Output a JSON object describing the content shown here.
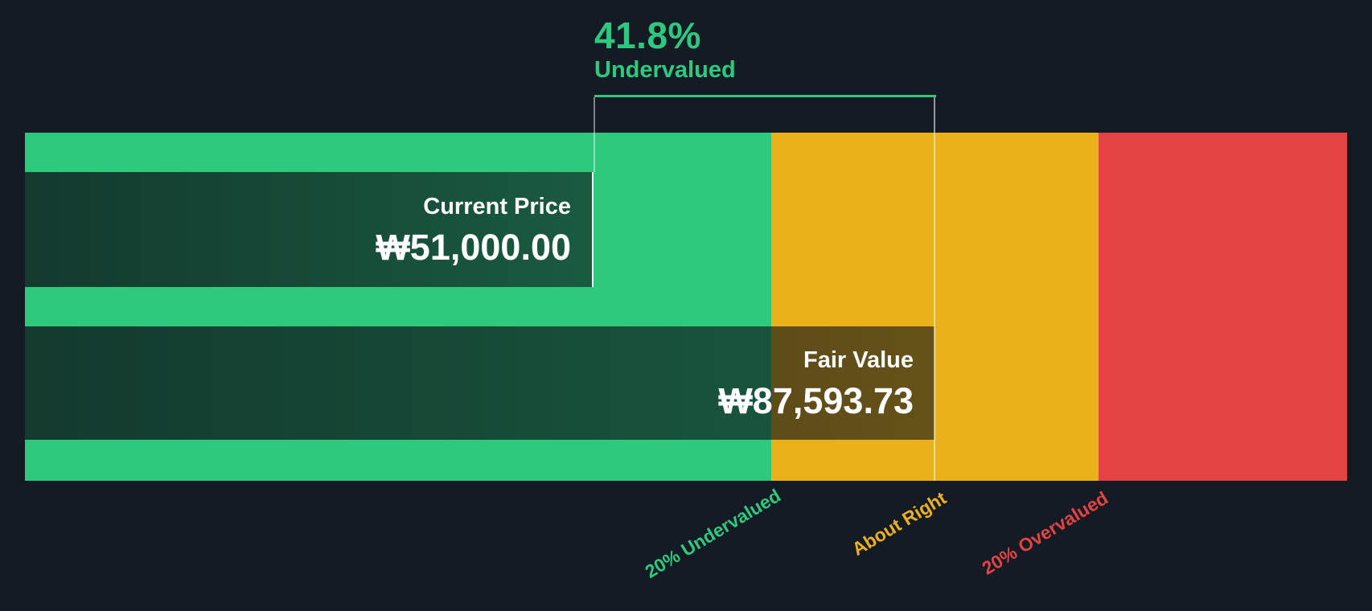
{
  "header": {
    "percent": "41.8%",
    "status": "Undervalued"
  },
  "bars": {
    "current_price": {
      "label": "Current Price",
      "value": "₩51,000.00"
    },
    "fair_value": {
      "label": "Fair Value",
      "value": "₩87,593.73"
    }
  },
  "zone_labels": {
    "undervalued": "20% Undervalued",
    "about_right": "About Right",
    "overvalued": "20% Overvalued"
  },
  "colors": {
    "background": "#151b24",
    "green": "#2dc97e",
    "amber": "#ebb11a",
    "red": "#e34343",
    "text": "#ffffff"
  },
  "chart_data": {
    "type": "bar",
    "orientation": "horizontal",
    "currency_symbol": "₩",
    "series": [
      {
        "name": "Current Price",
        "value": 51000.0,
        "display": "₩51,000.00"
      },
      {
        "name": "Fair Value",
        "value": 87593.73,
        "display": "₩87,593.73"
      }
    ],
    "annotation": {
      "percent": 41.8,
      "label": "Undervalued"
    },
    "zones": [
      {
        "label": "20% Undervalued",
        "color": "#2dc97e"
      },
      {
        "label": "About Right",
        "color": "#ebb11a"
      },
      {
        "label": "20% Overvalued",
        "color": "#e34343"
      }
    ],
    "legend_position": "none",
    "grid": false
  }
}
